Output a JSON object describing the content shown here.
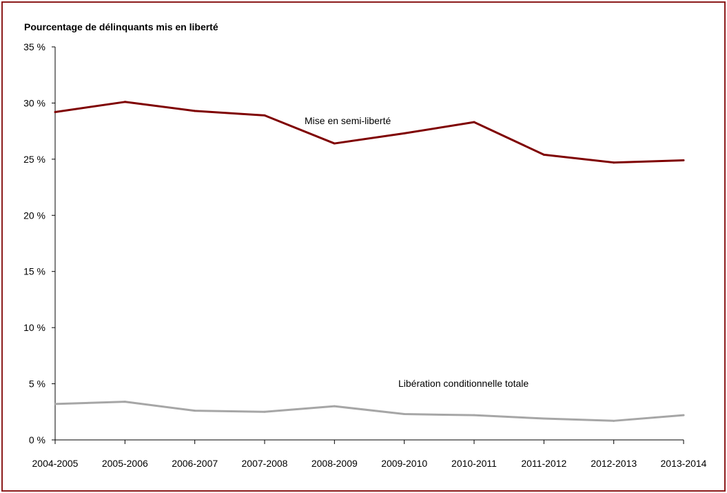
{
  "chart_data": {
    "type": "line",
    "title": "",
    "ylabel": "Pourcentage de délinquants mis en liberté",
    "xlabel": "",
    "categories": [
      "2004-2005",
      "2005-2006",
      "2006-2007",
      "2007-2008",
      "2008-2009",
      "2009-2010",
      "2010-2011",
      "2011-2012",
      "2012-2013",
      "2013-2014"
    ],
    "ylim": [
      0,
      35
    ],
    "yticks": [
      0,
      5,
      10,
      15,
      20,
      25,
      30,
      35
    ],
    "ytick_labels": [
      "0 %",
      "5 %",
      "10 %",
      "15 %",
      "20 %",
      "25 %",
      "30 %",
      "35 %"
    ],
    "grid": false,
    "legend": "none",
    "series": [
      {
        "name": "Mise en semi-liberté",
        "color": "#7f0000",
        "values": [
          29.2,
          30.1,
          29.3,
          28.9,
          26.4,
          27.3,
          28.3,
          25.4,
          24.7,
          24.9
        ]
      },
      {
        "name": "Libération conditionnelle totale",
        "color": "#a6a6a6",
        "values": [
          3.2,
          3.4,
          2.6,
          2.5,
          3.0,
          2.3,
          2.2,
          1.9,
          1.7,
          2.2
        ]
      }
    ]
  }
}
